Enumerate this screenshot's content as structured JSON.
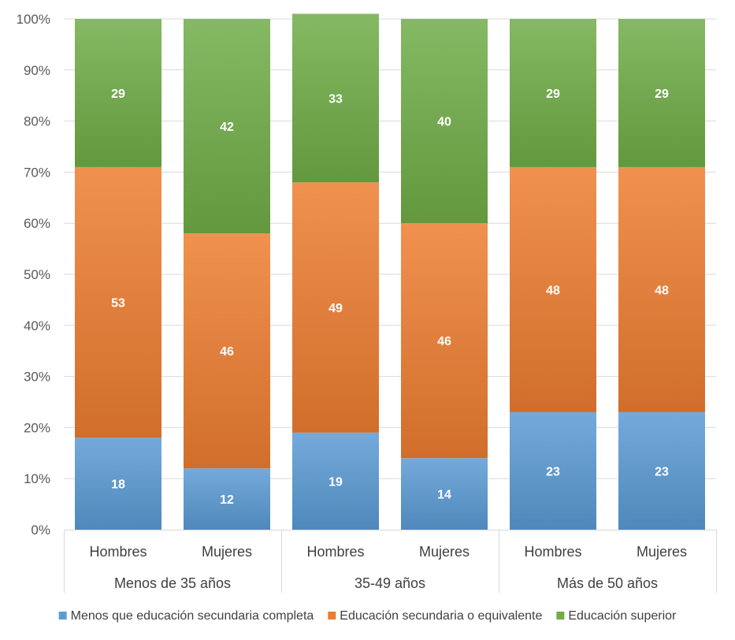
{
  "chart_data": {
    "type": "bar",
    "stacked": true,
    "percent_stacked": true,
    "title": "",
    "xlabel": "",
    "ylabel": "",
    "ylim": [
      0,
      100
    ],
    "y_ticks": [
      "0%",
      "10%",
      "20%",
      "30%",
      "40%",
      "50%",
      "60%",
      "70%",
      "80%",
      "90%",
      "100%"
    ],
    "grid": true,
    "legend_position": "bottom",
    "categories": [
      "Hombres",
      "Mujeres",
      "Hombres",
      "Mujeres",
      "Hombres",
      "Mujeres"
    ],
    "groups": [
      {
        "label": "Menos de 35 años",
        "categories": [
          0,
          1
        ]
      },
      {
        "label": "35-49 años",
        "categories": [
          2,
          3
        ]
      },
      {
        "label": "Más de 50 años",
        "categories": [
          4,
          5
        ]
      }
    ],
    "series": [
      {
        "name": "Menos que educación secundaria completa",
        "color": "#5B9BD5",
        "values": [
          18,
          12,
          19,
          14,
          23,
          23
        ]
      },
      {
        "name": "Educación secundaria o equivalente",
        "color": "#ED7D31",
        "values": [
          53,
          46,
          49,
          46,
          48,
          48
        ]
      },
      {
        "name": "Educación superior",
        "color": "#70AD47",
        "values": [
          29,
          42,
          33,
          40,
          29,
          29
        ]
      }
    ]
  }
}
